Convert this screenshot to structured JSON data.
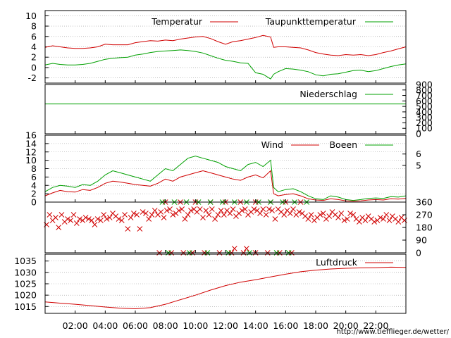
{
  "colors": {
    "red": "#d00000",
    "green": "#00a000",
    "axis": "#000000"
  },
  "source_url": "http://www.tiefflieger.de/wetter/",
  "chart_data": [
    {
      "id": "temperature",
      "type": "line",
      "ylim": [
        -3,
        11
      ],
      "yticks": [
        "-2",
        "0",
        "2",
        "4",
        "6",
        "8",
        "10"
      ],
      "ytick_values": [
        -2,
        0,
        2,
        4,
        6,
        8,
        10
      ],
      "xlim": [
        0,
        24
      ],
      "series": [
        {
          "name": "Temperatur",
          "color": "red",
          "x": [
            0,
            0.5,
            1,
            1.5,
            2,
            2.5,
            3,
            3.5,
            4,
            4.5,
            5,
            5.5,
            6,
            6.5,
            7,
            7.5,
            8,
            8.5,
            9,
            9.5,
            10,
            10.5,
            11,
            11.5,
            12,
            12.5,
            13,
            13.5,
            14,
            14.5,
            15,
            15.2,
            15.5,
            16,
            16.5,
            17,
            17.5,
            18,
            18.5,
            19,
            19.5,
            20,
            20.5,
            21,
            21.5,
            22,
            22.5,
            23,
            23.5,
            24
          ],
          "y": [
            3.9,
            4.2,
            4.0,
            3.8,
            3.7,
            3.7,
            3.8,
            4.0,
            4.5,
            4.4,
            4.4,
            4.4,
            4.8,
            5.0,
            5.2,
            5.1,
            5.3,
            5.2,
            5.5,
            5.7,
            5.9,
            6.0,
            5.6,
            5.0,
            4.5,
            5.0,
            5.2,
            5.5,
            5.8,
            6.2,
            5.9,
            3.9,
            4.0,
            4.0,
            3.9,
            3.8,
            3.4,
            2.9,
            2.6,
            2.4,
            2.3,
            2.5,
            2.4,
            2.5,
            2.3,
            2.5,
            2.9,
            3.2,
            3.6,
            4.0
          ]
        },
        {
          "name": "Taupunkttemperatur",
          "color": "green",
          "x": [
            0,
            0.5,
            1,
            1.5,
            2,
            2.5,
            3,
            3.5,
            4,
            4.5,
            5,
            5.5,
            6,
            6.5,
            7,
            7.5,
            8,
            8.5,
            9,
            9.5,
            10,
            10.5,
            11,
            11.5,
            12,
            12.5,
            13,
            13.5,
            14,
            14.5,
            15,
            15.2,
            15.5,
            16,
            16.5,
            17,
            17.5,
            18,
            18.5,
            19,
            19.5,
            20,
            20.5,
            21,
            21.5,
            22,
            22.5,
            23,
            23.5,
            24
          ],
          "y": [
            0.5,
            0.8,
            0.6,
            0.5,
            0.5,
            0.6,
            0.8,
            1.2,
            1.6,
            1.8,
            1.9,
            2.0,
            2.4,
            2.6,
            2.9,
            3.1,
            3.2,
            3.3,
            3.4,
            3.3,
            3.1,
            2.8,
            2.3,
            1.8,
            1.4,
            1.2,
            0.9,
            0.8,
            -1.0,
            -1.3,
            -2.2,
            -1.3,
            -0.8,
            -0.2,
            -0.3,
            -0.5,
            -0.8,
            -1.4,
            -1.6,
            -1.3,
            -1.2,
            -0.9,
            -0.6,
            -0.5,
            -0.8,
            -0.6,
            -0.2,
            0.2,
            0.5,
            0.7
          ]
        }
      ]
    },
    {
      "id": "precipitation",
      "type": "line",
      "ylim": [
        0,
        900
      ],
      "yticks": [
        "0",
        "100",
        "200",
        "300",
        "400",
        "500",
        "600",
        "700",
        "800",
        "900"
      ],
      "ytick_values": [
        0,
        100,
        200,
        300,
        400,
        500,
        600,
        700,
        800,
        900
      ],
      "xlim": [
        0,
        24
      ],
      "series": [
        {
          "name": "Niederschlag",
          "color": "green",
          "x": [
            0,
            24
          ],
          "y": [
            545,
            545
          ]
        }
      ]
    },
    {
      "id": "wind",
      "type": "line",
      "ylim": [
        0,
        16
      ],
      "yticks": [
        "0",
        "2",
        "4",
        "6",
        "8",
        "10",
        "12",
        "14",
        "16"
      ],
      "ytick_values": [
        0,
        2,
        4,
        6,
        8,
        10,
        12,
        14,
        16
      ],
      "right_ticks": [
        "6",
        "5"
      ],
      "right_tick_values": [
        11.5,
        8.8
      ],
      "xlim": [
        0,
        24
      ],
      "series": [
        {
          "name": "Wind",
          "color": "red",
          "x": [
            0,
            0.5,
            1,
            1.5,
            2,
            2.5,
            3,
            3.5,
            4,
            4.5,
            5,
            5.5,
            6,
            6.5,
            7,
            7.5,
            8,
            8.5,
            9,
            9.5,
            10,
            10.5,
            11,
            11.5,
            12,
            12.5,
            13,
            13.5,
            14,
            14.5,
            15,
            15.2,
            15.5,
            16,
            16.5,
            17,
            17.5,
            18,
            18.5,
            19,
            19.5,
            20,
            20.5,
            21,
            21.5,
            22,
            22.5,
            23,
            23.5,
            24
          ],
          "y": [
            1.5,
            2.2,
            2.8,
            2.5,
            2.4,
            3.0,
            2.8,
            3.5,
            4.5,
            5.0,
            4.8,
            4.5,
            4.2,
            4.0,
            3.8,
            4.5,
            5.5,
            5.0,
            6.0,
            6.5,
            7.0,
            7.5,
            7.0,
            6.5,
            6.0,
            5.5,
            5.2,
            6.0,
            6.5,
            5.8,
            7.5,
            2.0,
            1.5,
            1.8,
            2.0,
            1.5,
            0.8,
            0.5,
            0.4,
            0.8,
            0.6,
            0.3,
            0.2,
            0.3,
            0.5,
            0.6,
            0.5,
            0.8,
            0.7,
            0.9
          ]
        },
        {
          "name": "Boeen",
          "color": "green",
          "x": [
            0,
            0.5,
            1,
            1.5,
            2,
            2.5,
            3,
            3.5,
            4,
            4.5,
            5,
            5.5,
            6,
            6.5,
            7,
            7.5,
            8,
            8.5,
            9,
            9.5,
            10,
            10.5,
            11,
            11.5,
            12,
            12.5,
            13,
            13.5,
            14,
            14.5,
            15,
            15.2,
            15.5,
            16,
            16.5,
            17,
            17.5,
            18,
            18.5,
            19,
            19.5,
            20,
            20.5,
            21,
            21.5,
            22,
            22.5,
            23,
            23.5,
            24
          ],
          "y": [
            2.5,
            3.5,
            4.0,
            3.8,
            3.5,
            4.2,
            4.0,
            5.0,
            6.5,
            7.5,
            7.0,
            6.5,
            6.0,
            5.5,
            5.0,
            6.5,
            8.0,
            7.5,
            9.0,
            10.5,
            11.0,
            10.5,
            10.0,
            9.5,
            8.5,
            8.0,
            7.5,
            9.0,
            9.5,
            8.5,
            10.0,
            3.5,
            2.5,
            3.0,
            3.2,
            2.5,
            1.5,
            0.8,
            0.6,
            1.5,
            1.2,
            0.6,
            0.4,
            0.6,
            0.9,
            1.0,
            0.9,
            1.3,
            1.2,
            1.5
          ]
        }
      ]
    },
    {
      "id": "wind_direction",
      "type": "scatter",
      "ylim": [
        0,
        360
      ],
      "yticks": [
        "0",
        "90",
        "180",
        "270",
        "360"
      ],
      "ytick_values": [
        0,
        90,
        180,
        270,
        360
      ],
      "xlim": [
        0,
        24
      ],
      "series": [
        {
          "name": "",
          "color": "red",
          "marker": "x",
          "x": [
            0.1,
            0.3,
            0.5,
            0.7,
            0.9,
            1.1,
            1.3,
            1.5,
            1.7,
            1.9,
            2.1,
            2.3,
            2.5,
            2.7,
            2.9,
            3.1,
            3.3,
            3.5,
            3.7,
            3.9,
            4.1,
            4.3,
            4.5,
            4.7,
            4.9,
            5.1,
            5.3,
            5.5,
            5.7,
            5.9,
            6.1,
            6.3,
            6.5,
            6.7,
            6.9,
            7.1,
            7.3,
            7.5,
            7.7,
            7.9,
            8.1,
            8.3,
            8.5,
            8.7,
            8.9,
            9.1,
            9.3,
            9.5,
            9.7,
            9.9,
            10.1,
            10.3,
            10.5,
            10.7,
            10.9,
            11.1,
            11.3,
            11.5,
            11.7,
            11.9,
            12.1,
            12.3,
            12.5,
            12.7,
            12.9,
            13.1,
            13.3,
            13.5,
            13.7,
            13.9,
            14.1,
            14.3,
            14.5,
            14.7,
            14.9,
            15.1,
            15.3,
            15.5,
            15.7,
            15.9,
            16.1,
            16.3,
            16.5,
            16.7,
            16.9,
            17.1,
            17.3,
            17.5,
            17.7,
            17.9,
            18.1,
            18.3,
            18.5,
            18.7,
            18.9,
            19.1,
            19.3,
            19.5,
            19.7,
            19.9,
            20.1,
            20.3,
            20.5,
            20.7,
            20.9,
            21.1,
            21.3,
            21.5,
            21.7,
            21.9,
            22.1,
            22.3,
            22.5,
            22.7,
            22.9,
            23.1,
            23.3,
            23.5,
            23.7,
            23.9,
            7.6,
            8.4,
            9.2,
            9.8,
            10.6,
            11.6,
            12.4,
            13.2,
            14.0,
            14.8,
            15.6,
            16.4,
            8.0,
            9.0,
            10.0,
            11.0,
            12.0,
            13.0,
            14.0,
            15.0,
            16.0,
            17.0,
            12.6,
            13.4
          ],
          "y": [
            200,
            270,
            230,
            250,
            180,
            270,
            220,
            240,
            230,
            270,
            210,
            240,
            230,
            250,
            240,
            230,
            200,
            240,
            230,
            270,
            240,
            250,
            280,
            260,
            240,
            230,
            270,
            170,
            250,
            280,
            270,
            170,
            290,
            280,
            240,
            270,
            300,
            270,
            290,
            250,
            300,
            310,
            270,
            280,
            300,
            310,
            240,
            270,
            300,
            310,
            290,
            310,
            250,
            300,
            270,
            310,
            240,
            270,
            300,
            270,
            300,
            280,
            310,
            260,
            280,
            300,
            310,
            270,
            290,
            310,
            300,
            280,
            310,
            270,
            310,
            300,
            240,
            310,
            290,
            270,
            300,
            280,
            310,
            270,
            290,
            280,
            260,
            240,
            270,
            230,
            250,
            270,
            280,
            240,
            260,
            290,
            270,
            250,
            280,
            230,
            240,
            280,
            270,
            240,
            220,
            250,
            230,
            260,
            240,
            220,
            230,
            250,
            240,
            270,
            230,
            260,
            240,
            220,
            250,
            230,
            0,
            0,
            0,
            0,
            0,
            0,
            0,
            0,
            0,
            0,
            0,
            0,
            360,
            360,
            360,
            360,
            360,
            360,
            360,
            360,
            360,
            360,
            30,
            30
          ]
        },
        {
          "name": "",
          "color": "green",
          "marker": "x",
          "x": [
            7.8,
            8.6,
            9.4,
            10.2,
            11.0,
            11.8,
            12.6,
            13.4,
            14.2,
            15.0,
            15.8,
            16.6,
            17.4,
            8.2,
            9.6,
            10.8,
            12.2,
            13.6,
            15.4,
            16.2
          ],
          "y": [
            360,
            360,
            360,
            360,
            360,
            360,
            360,
            360,
            360,
            360,
            360,
            360,
            360,
            0,
            0,
            0,
            0,
            0,
            0,
            0
          ]
        }
      ]
    },
    {
      "id": "pressure",
      "type": "line",
      "ylim": [
        1012,
        1038
      ],
      "yticks": [
        "1015",
        "1020",
        "1025",
        "1030",
        "1035"
      ],
      "ytick_values": [
        1015,
        1020,
        1025,
        1030,
        1035
      ],
      "xlim": [
        0,
        24
      ],
      "xticks": [
        "02:00",
        "04:00",
        "06:00",
        "08:00",
        "10:00",
        "12:00",
        "14:00",
        "16:00",
        "18:00",
        "20:00",
        "22:00"
      ],
      "xtick_values": [
        2,
        4,
        6,
        8,
        10,
        12,
        14,
        16,
        18,
        20,
        22
      ],
      "series": [
        {
          "name": "Luftdruck",
          "color": "red",
          "x": [
            0,
            1,
            2,
            3,
            4,
            5,
            6,
            7,
            8,
            9,
            10,
            11,
            12,
            13,
            14,
            15,
            16,
            17,
            18,
            19,
            20,
            21,
            22,
            23,
            24
          ],
          "y": [
            1017,
            1016.5,
            1016,
            1015.4,
            1014.8,
            1014.3,
            1014,
            1014.5,
            1016,
            1018,
            1020,
            1022.2,
            1024.2,
            1025.7,
            1026.8,
            1028,
            1029.2,
            1030.3,
            1031,
            1031.5,
            1031.8,
            1032,
            1032.1,
            1032.3,
            1032.2
          ]
        }
      ]
    }
  ]
}
